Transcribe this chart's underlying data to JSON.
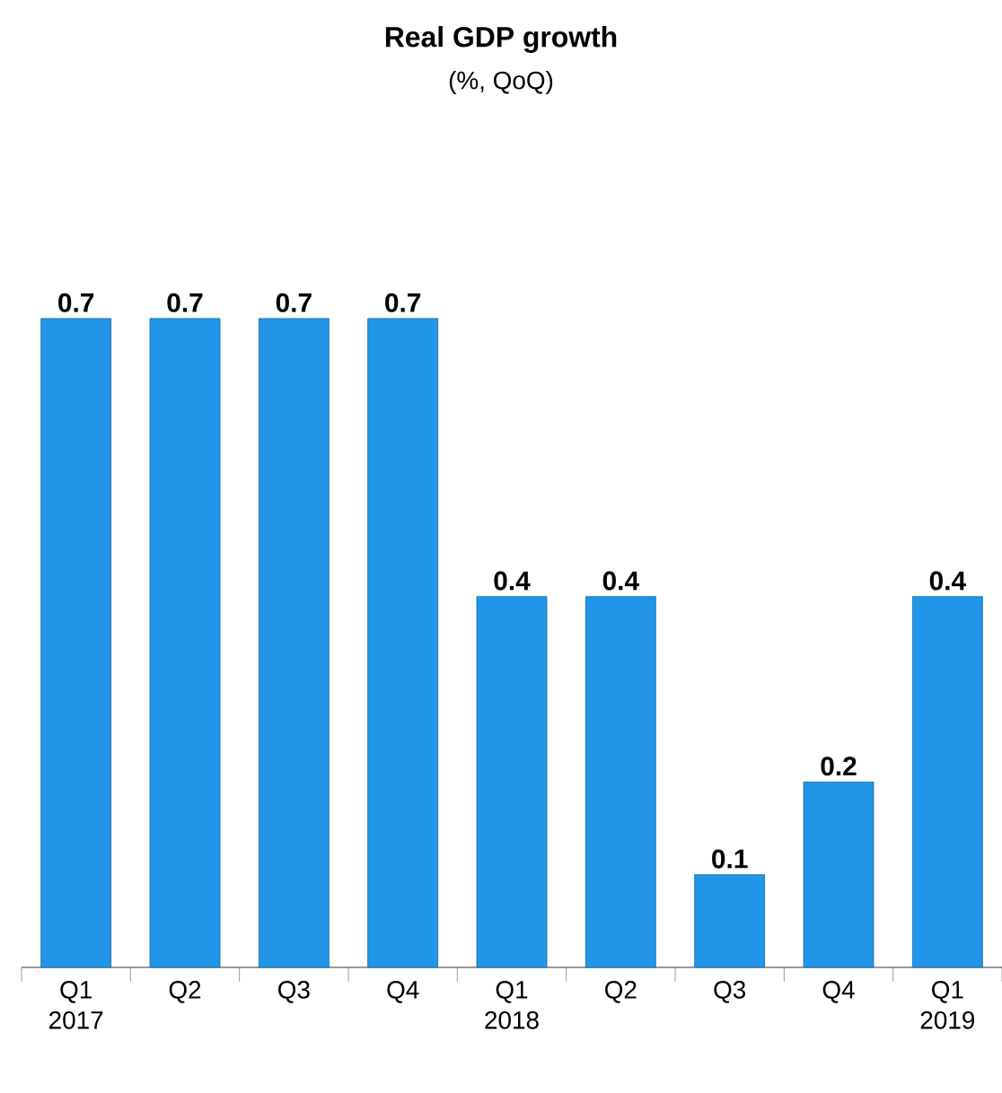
{
  "chart_data": {
    "type": "bar",
    "title": "Real GDP growth",
    "subtitle": "(%, QoQ)",
    "categories": [
      "Q1 2017",
      "Q2",
      "Q3",
      "Q4",
      "Q1 2018",
      "Q2",
      "Q3",
      "Q4",
      "Q1 2019"
    ],
    "values": [
      0.7,
      0.7,
      0.7,
      0.7,
      0.4,
      0.4,
      0.1,
      0.2,
      0.4
    ],
    "color": "#2196e8",
    "data_labels": true
  }
}
